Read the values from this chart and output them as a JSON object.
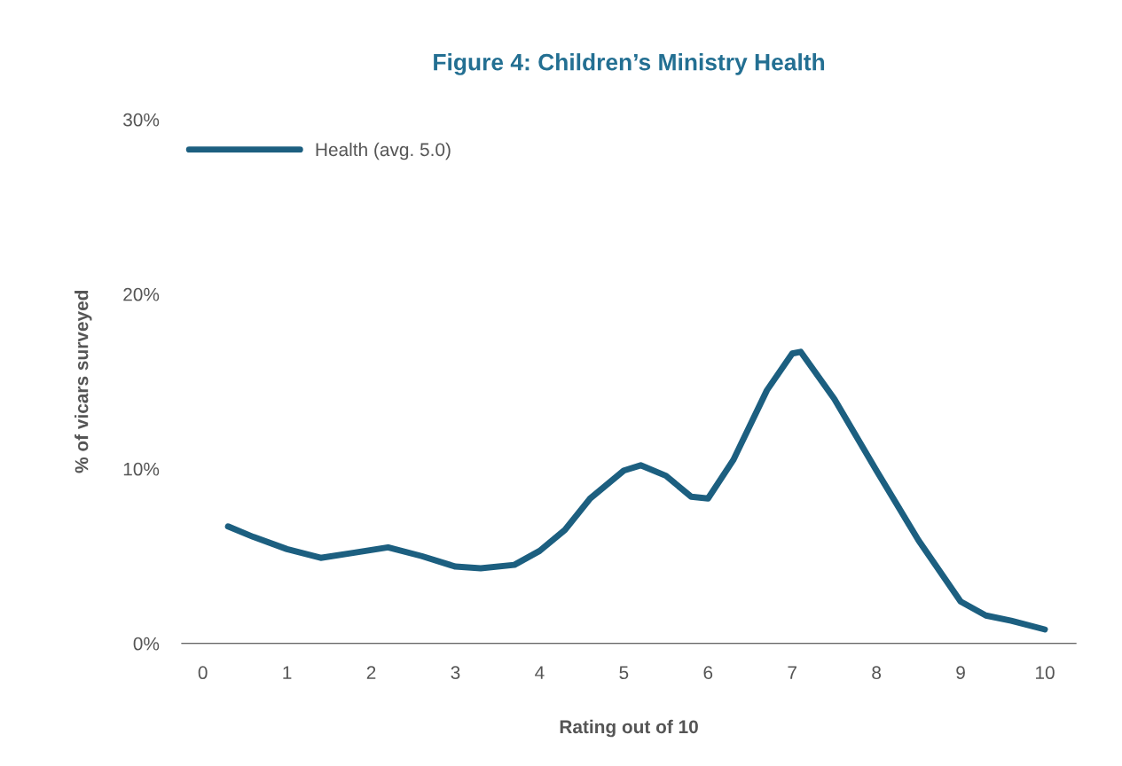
{
  "chart_data": {
    "type": "line",
    "title": "Figure 4: Children’s Ministry Health",
    "xlabel": "Rating out of 10",
    "ylabel": "% of vicars surveyed",
    "series": [
      {
        "name": "Health (avg. 5.0)",
        "color": "#1c5f80",
        "x": [
          0.3,
          0.6,
          1,
          1.4,
          1.8,
          2.2,
          2.6,
          3,
          3.3,
          3.7,
          4,
          4.3,
          4.6,
          5,
          5.2,
          5.5,
          5.8,
          6,
          6.3,
          6.7,
          7,
          7.1,
          7.5,
          8,
          8.5,
          9,
          9.3,
          9.6,
          10
        ],
        "values": [
          6.7,
          6.1,
          5.4,
          4.9,
          5.2,
          5.5,
          5.0,
          4.4,
          4.3,
          4.5,
          5.3,
          6.5,
          8.3,
          9.9,
          10.2,
          9.6,
          8.4,
          8.3,
          10.5,
          14.5,
          16.6,
          16.7,
          14.0,
          9.9,
          5.9,
          2.4,
          1.6,
          1.3,
          0.8
        ]
      }
    ],
    "xlim": [
      -0.25,
      10.37
    ],
    "xticks": [
      0,
      1,
      2,
      3,
      4,
      5,
      6,
      7,
      8,
      9,
      10
    ],
    "ylim": [
      0,
      30
    ],
    "yticks": [
      {
        "value": 0,
        "label": "0%"
      },
      {
        "value": 10,
        "label": "10%"
      },
      {
        "value": 20,
        "label": "20%"
      },
      {
        "value": 30,
        "label": "30%"
      }
    ],
    "grid": false,
    "legend": "top left",
    "line_style": "solid",
    "marker": "none"
  }
}
